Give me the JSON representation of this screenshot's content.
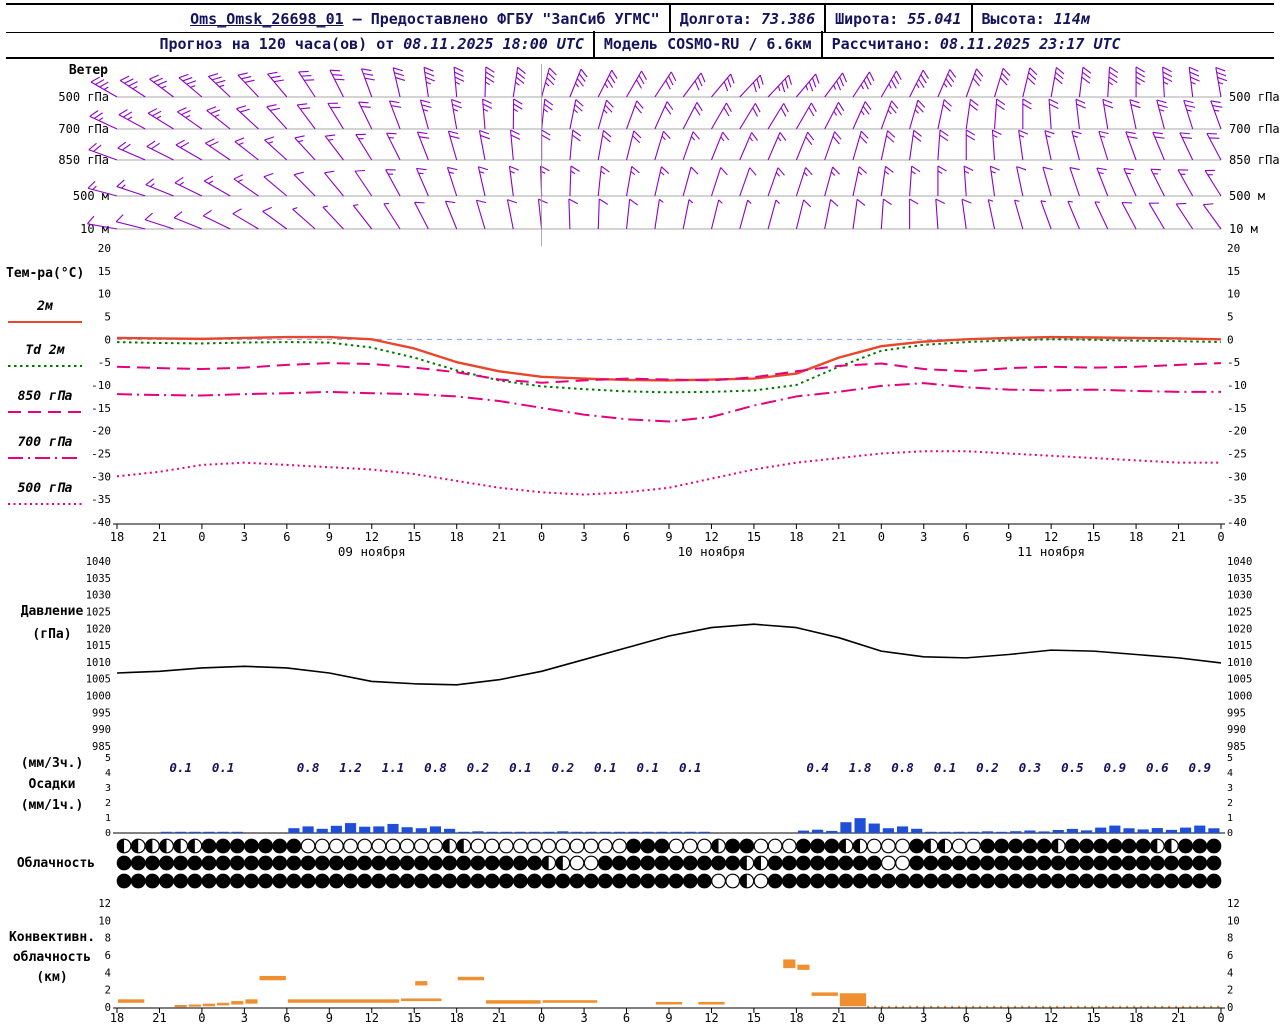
{
  "header": {
    "station": "Oms_Omsk_26698_01",
    "provider": "– Предоставлено ФГБУ \"ЗапСиб УГМС\"",
    "lon_label": "Долгота:",
    "lon": "73.386",
    "lat_label": "Широта:",
    "lat": "55.041",
    "alt_label": "Высота:",
    "alt": "114м",
    "forecast_label": "Прогноз на 120 часа(ов) от",
    "forecast_time": "08.11.2025 18:00 UTC",
    "model_label": "Модель",
    "model": "COSMO-RU / 6.6км",
    "calc_label": "Рассчитано:",
    "calc_time": "08.11.2025 23:17 UTC"
  },
  "labels": {
    "wind": "Ветер",
    "temp_title": "Тем-ра(°C)",
    "pressure_1": "Давление",
    "pressure_2": "(гПа)",
    "precip_1": "(мм/3ч.)",
    "precip_2": "Осадки",
    "precip_3": "(мм/1ч.)",
    "cloud": "Облачность",
    "conv_1": "Конвективн.",
    "conv_2": "облачность",
    "conv_3": "(км)"
  },
  "axis": {
    "hours": [
      "18",
      "21",
      "0",
      "3",
      "6",
      "9",
      "12",
      "15",
      "18",
      "21",
      "0",
      "3",
      "6",
      "9",
      "12",
      "15",
      "18",
      "21",
      "0",
      "3",
      "6",
      "9",
      "12",
      "15",
      "18",
      "21",
      "0"
    ],
    "dates": [
      {
        "label": "09 ноября",
        "center_idx": 6
      },
      {
        "label": "10 ноября",
        "center_idx": 14
      },
      {
        "label": "11 ноября",
        "center_idx": 22
      }
    ]
  },
  "chart_data": [
    {
      "id": "wind",
      "type": "wind-barbs",
      "title": "Ветер",
      "color": "#8f00c8",
      "levels": [
        {
          "name": "500 гПа",
          "dirs": [
            300,
            305,
            310,
            315,
            320,
            330,
            340,
            350,
            355,
            365,
            375,
            385,
            390,
            395,
            400,
            405,
            400,
            395,
            390,
            385,
            380,
            375,
            370,
            365,
            360,
            355,
            350
          ],
          "speeds": [
            18,
            18,
            17,
            16,
            16,
            15,
            15,
            16,
            17,
            18,
            18,
            17,
            16,
            15,
            15,
            16,
            17,
            18,
            18,
            17,
            16,
            15,
            15,
            16,
            17,
            18,
            18
          ]
        },
        {
          "name": "700 гПа",
          "dirs": [
            295,
            300,
            305,
            310,
            318,
            326,
            334,
            342,
            350,
            358,
            366,
            374,
            380,
            386,
            390,
            392,
            390,
            386,
            380,
            374,
            368,
            362,
            356,
            352,
            348,
            344,
            340
          ],
          "speeds": [
            12,
            12,
            12,
            11,
            11,
            10,
            10,
            11,
            12,
            13,
            13,
            12,
            11,
            11,
            10,
            10,
            11,
            12,
            12,
            11,
            11,
            10,
            10,
            11,
            11,
            12,
            12
          ]
        },
        {
          "name": "850 гПа",
          "dirs": [
            290,
            295,
            300,
            306,
            312,
            320,
            328,
            336,
            344,
            352,
            360,
            368,
            374,
            378,
            382,
            384,
            382,
            378,
            372,
            366,
            360,
            354,
            348,
            344,
            340,
            336,
            332
          ],
          "speeds": [
            10,
            10,
            9,
            9,
            8,
            8,
            8,
            9,
            10,
            10,
            10,
            9,
            9,
            8,
            8,
            8,
            9,
            10,
            10,
            9,
            9,
            8,
            8,
            8,
            9,
            9,
            10
          ]
        },
        {
          "name": "500 м",
          "dirs": [
            285,
            290,
            296,
            302,
            310,
            318,
            326,
            334,
            342,
            350,
            358,
            364,
            370,
            374,
            378,
            380,
            378,
            374,
            368,
            362,
            356,
            350,
            344,
            340,
            336,
            332,
            328
          ],
          "speeds": [
            8,
            8,
            7,
            7,
            6,
            6,
            6,
            7,
            8,
            8,
            8,
            7,
            7,
            6,
            6,
            6,
            7,
            8,
            8,
            7,
            7,
            6,
            6,
            6,
            7,
            7,
            8
          ]
        },
        {
          "name": "10 м",
          "dirs": [
            280,
            286,
            292,
            298,
            306,
            314,
            322,
            330,
            338,
            346,
            354,
            360,
            366,
            370,
            374,
            376,
            374,
            370,
            364,
            358,
            352,
            346,
            340,
            336,
            332,
            328,
            324
          ],
          "speeds": [
            5,
            5,
            4,
            4,
            4,
            3,
            3,
            4,
            5,
            5,
            5,
            4,
            4,
            3,
            3,
            3,
            4,
            5,
            5,
            4,
            4,
            3,
            3,
            3,
            4,
            4,
            5
          ]
        }
      ]
    },
    {
      "id": "temperature",
      "type": "line",
      "title": "Тем-ра(°C)",
      "ylim": [
        -40,
        20
      ],
      "yticks": [
        20,
        15,
        10,
        5,
        0,
        -5,
        -10,
        -15,
        -20,
        -25,
        -30,
        -35,
        -40
      ],
      "step_hours": 3,
      "zero_line_color": "#7f9fff",
      "series": [
        {
          "name": "2м",
          "color": "#e8472b",
          "style": "solid",
          "values": [
            0.3,
            0.2,
            0.1,
            0.3,
            0.5,
            0.5,
            0.0,
            -2.0,
            -5.0,
            -7.0,
            -8.2,
            -8.6,
            -8.9,
            -9.0,
            -8.8,
            -8.6,
            -7.5,
            -4.0,
            -1.5,
            -0.5,
            0.0,
            0.3,
            0.5,
            0.4,
            0.3,
            0.2,
            0.0
          ]
        },
        {
          "name": "Td 2м",
          "color": "#007a00",
          "style": "dotted",
          "values": [
            -0.6,
            -0.8,
            -0.9,
            -0.7,
            -0.6,
            -0.7,
            -1.8,
            -4.0,
            -6.8,
            -9.0,
            -10.3,
            -10.9,
            -11.4,
            -11.6,
            -11.5,
            -11.2,
            -10.0,
            -6.0,
            -2.5,
            -1.2,
            -0.6,
            -0.2,
            0.0,
            -0.1,
            -0.3,
            -0.4,
            -0.6
          ]
        },
        {
          "name": "850 гПа",
          "color": "#e6007e",
          "style": "longdash",
          "values": [
            -6.0,
            -6.3,
            -6.5,
            -6.2,
            -5.6,
            -5.2,
            -5.4,
            -6.2,
            -7.2,
            -8.8,
            -9.5,
            -9.0,
            -8.6,
            -8.8,
            -9.0,
            -8.3,
            -7.0,
            -5.8,
            -5.3,
            -6.5,
            -7.0,
            -6.3,
            -6.0,
            -6.2,
            -6.0,
            -5.6,
            -5.2
          ]
        },
        {
          "name": "700 гПа",
          "color": "#e6007e",
          "style": "dashdot",
          "values": [
            -12.0,
            -12.2,
            -12.3,
            -12.0,
            -11.8,
            -11.5,
            -11.8,
            -12.0,
            -12.5,
            -13.5,
            -15.0,
            -16.5,
            -17.5,
            -18.0,
            -17.0,
            -14.5,
            -12.5,
            -11.5,
            -10.2,
            -9.6,
            -10.5,
            -11.0,
            -11.2,
            -11.0,
            -11.3,
            -11.5,
            -11.5
          ]
        },
        {
          "name": "500 гПа",
          "color": "#e6007e",
          "style": "finedot",
          "values": [
            -30.0,
            -29.0,
            -27.5,
            -27.0,
            -27.5,
            -28.0,
            -28.5,
            -29.5,
            -31.0,
            -32.5,
            -33.5,
            -34.0,
            -33.5,
            -32.5,
            -30.5,
            -28.5,
            -27.0,
            -26.0,
            -25.0,
            -24.5,
            -24.5,
            -25.0,
            -25.5,
            -26.0,
            -26.5,
            -27.0,
            -27.0
          ]
        }
      ]
    },
    {
      "id": "pressure",
      "type": "line",
      "title": "Давление (гПа)",
      "ylim": [
        985,
        1040
      ],
      "yticks": [
        1040,
        1035,
        1030,
        1025,
        1020,
        1015,
        1010,
        1005,
        1000,
        995,
        990,
        985
      ],
      "series": [
        {
          "name": "Давление",
          "color": "#000000",
          "values": [
            1007.0,
            1007.5,
            1008.5,
            1009.0,
            1008.5,
            1007.0,
            1004.5,
            1003.8,
            1003.5,
            1005.0,
            1007.5,
            1011.0,
            1014.5,
            1018.0,
            1020.5,
            1021.5,
            1020.5,
            1017.5,
            1013.5,
            1011.8,
            1011.5,
            1012.5,
            1013.8,
            1013.5,
            1012.5,
            1011.5,
            1010.0
          ]
        }
      ]
    },
    {
      "id": "precipitation",
      "type": "bar",
      "title": "Осадки",
      "unit_3h": "(мм/3ч.)",
      "unit_1h": "(мм/1ч.)",
      "ylim": [
        0,
        5
      ],
      "yticks": [
        5,
        4,
        3,
        2,
        1,
        0
      ],
      "bar_color": "#1f4fd8",
      "value_color": "#14145e",
      "values_3h": [
        0,
        0.1,
        0.1,
        0,
        0.8,
        1.2,
        1.1,
        0.8,
        0.2,
        0.1,
        0.2,
        0.1,
        0.1,
        0.1,
        0,
        0,
        0.4,
        1.8,
        0.8,
        0.1,
        0.2,
        0.3,
        0.5,
        0.9,
        0.6,
        0.9
      ]
    },
    {
      "id": "cloudiness",
      "type": "symbols",
      "title": "Облачность",
      "symbol_states": {
        "o": "open",
        "h": "half",
        "f": "filled"
      },
      "rows": [
        [
          [
            "h",
            6
          ],
          [
            "f",
            7
          ],
          [
            "o",
            10
          ],
          [
            "h",
            2
          ],
          [
            "o",
            11
          ],
          [
            "f",
            3
          ],
          [
            "o",
            3
          ],
          [
            "h",
            1
          ],
          [
            "f",
            2
          ],
          [
            "o",
            3
          ],
          [
            "f",
            3
          ],
          [
            "h",
            2
          ],
          [
            "o",
            3
          ],
          [
            "f",
            1
          ],
          [
            "h",
            2
          ],
          [
            "o",
            2
          ],
          [
            "f",
            5
          ],
          [
            "h",
            1
          ],
          [
            "f",
            6
          ],
          [
            "h",
            2
          ],
          [
            "f",
            3
          ]
        ],
        [
          [
            "f",
            30
          ],
          [
            "h",
            2
          ],
          [
            "o",
            2
          ],
          [
            "f",
            10
          ],
          [
            "h",
            2
          ],
          [
            "f",
            8
          ],
          [
            "o",
            2
          ],
          [
            "f",
            22
          ]
        ],
        [
          [
            "f",
            42
          ],
          [
            "o",
            2
          ],
          [
            "h",
            1
          ],
          [
            "o",
            1
          ],
          [
            "f",
            32
          ]
        ]
      ]
    },
    {
      "id": "convective",
      "type": "cloud-layers",
      "title": "Конвективн. облачность (км)",
      "ylim": [
        0,
        12
      ],
      "yticks": [
        12,
        10,
        8,
        6,
        4,
        2,
        0
      ],
      "bar_color": "#ef8f2f",
      "segments": [
        [
          0,
          2,
          0.6,
          1.0
        ],
        [
          4,
          1,
          0.1,
          0.35
        ],
        [
          5,
          1,
          0.15,
          0.4
        ],
        [
          6,
          1,
          0.2,
          0.5
        ],
        [
          7,
          1,
          0.3,
          0.6
        ],
        [
          8,
          1,
          0.4,
          0.8
        ],
        [
          9,
          1,
          0.5,
          1.0
        ],
        [
          10,
          2,
          3.2,
          3.7
        ],
        [
          12,
          8,
          0.6,
          1.0
        ],
        [
          20,
          3,
          0.8,
          1.1
        ],
        [
          21,
          1,
          2.6,
          3.1
        ],
        [
          24,
          2,
          3.2,
          3.6
        ],
        [
          26,
          4,
          0.5,
          0.9
        ],
        [
          30,
          4,
          0.6,
          0.9
        ],
        [
          38,
          2,
          0.4,
          0.7
        ],
        [
          41,
          2,
          0.4,
          0.7
        ],
        [
          47,
          1,
          4.6,
          5.6
        ],
        [
          48,
          1,
          4.4,
          5.0
        ],
        [
          49,
          2,
          1.4,
          1.8
        ],
        [
          51,
          2,
          0.2,
          1.7
        ]
      ],
      "baseline_dots": {
        "from_h": 53,
        "to_h": 78,
        "km": 0.15
      }
    }
  ]
}
